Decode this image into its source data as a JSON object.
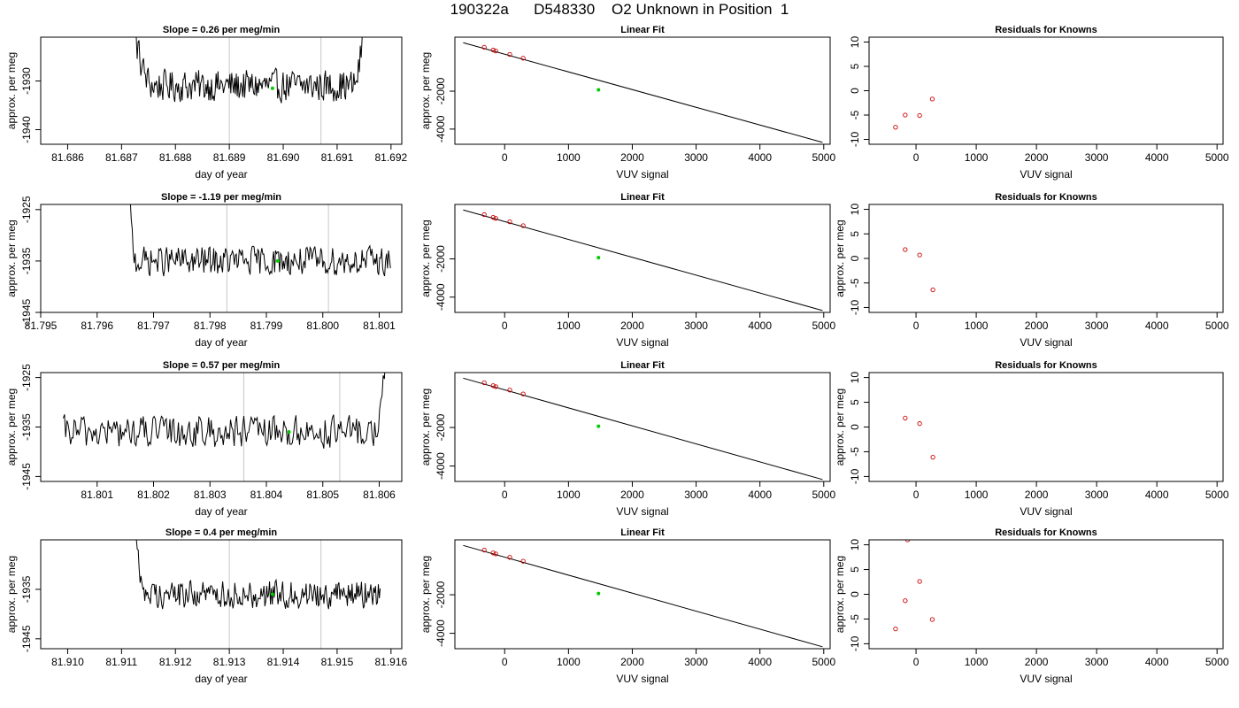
{
  "page_title": "190322a      D548330    O2 Unknown in Position  1",
  "colors": {
    "unknown_point": "#00cc00",
    "known_point": "#cc0000",
    "line": "#000000",
    "vline": "#c8c8c8"
  },
  "chart_data": [
    {
      "panel": "time-1",
      "type": "line",
      "title": "Slope =  0.26  per meg/min",
      "xlabel": "day of year",
      "ylabel": "approx. per meg",
      "xlim": [
        81.6855,
        81.6922
      ],
      "ylim": [
        -1943,
        -1921
      ],
      "xticks": [
        "81.686",
        "81.687",
        "81.688",
        "81.689",
        "81.690",
        "81.691",
        "81.692"
      ],
      "yticks": [
        "-1940",
        "-1930"
      ],
      "x_start": 81.687,
      "x_end": 81.6916,
      "level": -1931.0,
      "noise": 3.5,
      "rise_start": 81.687,
      "rise_end": 81.6876,
      "fall_start": 81.6913,
      "fall_end": 81.6916,
      "vlines": [
        81.689,
        81.6907
      ],
      "unknown_point": {
        "x": 81.6898,
        "y": -1931.5
      }
    },
    {
      "panel": "fit-1",
      "type": "scatter",
      "title": "Linear Fit",
      "xlabel": "VUV signal",
      "ylabel": "approx. per meg",
      "xlim": [
        -780,
        5100
      ],
      "ylim": [
        -4800,
        850
      ],
      "xticks": [
        "0",
        "1000",
        "2000",
        "3000",
        "4000",
        "5000"
      ],
      "yticks": [
        "-2000",
        "-4000"
      ],
      "fit_line": {
        "x": [
          -650,
          4980
        ],
        "y": [
          560,
          -4700
        ]
      },
      "knowns": {
        "x": [
          -320,
          -180,
          -140,
          80,
          290
        ],
        "y": [
          320,
          170,
          120,
          -60,
          -260
        ]
      },
      "unknown_point": {
        "x": 1470,
        "y": -1931
      }
    },
    {
      "panel": "resid-1",
      "type": "scatter",
      "title": "Residuals for Knowns",
      "xlabel": "VUV signal",
      "ylabel": "",
      "xlim": [
        -780,
        5100
      ],
      "ylim": [
        -11,
        11
      ],
      "xticks": [
        "0",
        "1000",
        "2000",
        "3000",
        "4000",
        "5000"
      ],
      "yticks": [
        "-10",
        "-5",
        "0",
        "5",
        "10"
      ],
      "points": {
        "x": [
          -340,
          -180,
          60,
          270
        ],
        "y": [
          -7.5,
          -5.0,
          -5.1,
          -1.7
        ]
      }
    },
    {
      "panel": "time-2",
      "type": "line",
      "title": "Slope =  -1.19  per meg/min",
      "xlabel": "day of year",
      "ylabel": "approx. per meg",
      "xlim": [
        81.795,
        81.8014
      ],
      "ylim": [
        -1945,
        -1924
      ],
      "xticks": [
        "81.795",
        "81.796",
        "81.797",
        "81.798",
        "81.799",
        "81.800",
        "81.801"
      ],
      "yticks": [
        "-1945",
        "-1935",
        "-1925"
      ],
      "x_start": 81.7965,
      "x_end": 81.8012,
      "level": -1935.0,
      "noise": 3.0,
      "rise_start": 81.7965,
      "rise_end": 81.7967,
      "fall_start": 81.9999,
      "fall_end": 81.9999,
      "vlines": [
        81.7983,
        81.8001
      ],
      "unknown_point": {
        "x": 81.7992,
        "y": -1935.0
      }
    },
    {
      "panel": "fit-2",
      "type": "scatter",
      "title": "Linear Fit",
      "xlabel": "VUV signal",
      "ylabel": "approx. per meg",
      "xlim": [
        -780,
        5100
      ],
      "ylim": [
        -4800,
        850
      ],
      "xticks": [
        "0",
        "1000",
        "2000",
        "3000",
        "4000",
        "5000"
      ],
      "yticks": [
        "-2000",
        "-4000"
      ],
      "fit_line": {
        "x": [
          -650,
          4980
        ],
        "y": [
          560,
          -4700
        ]
      },
      "knowns": {
        "x": [
          -320,
          -180,
          -140,
          80,
          290
        ],
        "y": [
          320,
          170,
          120,
          -60,
          -260
        ]
      },
      "unknown_point": {
        "x": 1470,
        "y": -1935
      }
    },
    {
      "panel": "resid-2",
      "type": "scatter",
      "title": "Residuals for Knowns",
      "xlabel": "VUV signal",
      "ylabel": "approx. per meg",
      "xlim": [
        -780,
        5100
      ],
      "ylim": [
        -11,
        11
      ],
      "xticks": [
        "0",
        "1000",
        "2000",
        "3000",
        "4000",
        "5000"
      ],
      "yticks": [
        "-10",
        "-5",
        "0",
        "5",
        "10"
      ],
      "points": {
        "x": [
          -180,
          60,
          280
        ],
        "y": [
          1.8,
          0.7,
          -6.4
        ]
      }
    },
    {
      "panel": "time-3",
      "type": "line",
      "title": "Slope =  0.57  per meg/min",
      "xlabel": "day of year",
      "ylabel": "approx. per meg",
      "xlim": [
        81.8,
        81.8064
      ],
      "ylim": [
        -1946,
        -1924
      ],
      "xticks": [
        "81.801",
        "81.802",
        "81.803",
        "81.804",
        "81.805",
        "81.806"
      ],
      "yticks": [
        "-1945",
        "-1935",
        "-1925"
      ],
      "x_start": 81.8004,
      "x_end": 81.8062,
      "level": -1936.0,
      "noise": 3.5,
      "rise_start": 81.7,
      "rise_end": 81.7,
      "fall_start": 81.8059,
      "fall_end": 81.8062,
      "vlines": [
        81.8036,
        81.8053
      ],
      "unknown_point": {
        "x": 81.8044,
        "y": -1936.0
      }
    },
    {
      "panel": "fit-3",
      "type": "scatter",
      "title": "Linear Fit",
      "xlabel": "VUV signal",
      "ylabel": "approx. per meg",
      "xlim": [
        -780,
        5100
      ],
      "ylim": [
        -4800,
        850
      ],
      "xticks": [
        "0",
        "1000",
        "2000",
        "3000",
        "4000",
        "5000"
      ],
      "yticks": [
        "-2000",
        "-4000"
      ],
      "fit_line": {
        "x": [
          -650,
          4980
        ],
        "y": [
          560,
          -4700
        ]
      },
      "knowns": {
        "x": [
          -320,
          -180,
          -140,
          80,
          290
        ],
        "y": [
          320,
          170,
          120,
          -60,
          -260
        ]
      },
      "unknown_point": {
        "x": 1470,
        "y": -1936
      }
    },
    {
      "panel": "resid-3",
      "type": "scatter",
      "title": "Residuals for Knowns",
      "xlabel": "VUV signal",
      "ylabel": "approx. per meg",
      "xlim": [
        -780,
        5100
      ],
      "ylim": [
        -11,
        11
      ],
      "xticks": [
        "0",
        "1000",
        "2000",
        "3000",
        "4000",
        "5000"
      ],
      "yticks": [
        "-10",
        "-5",
        "0",
        "5",
        "10"
      ],
      "points": {
        "x": [
          -180,
          60,
          280
        ],
        "y": [
          1.8,
          0.7,
          -6.1
        ]
      }
    },
    {
      "panel": "time-4",
      "type": "line",
      "title": "Slope =  0.4  per meg/min",
      "xlabel": "day of year",
      "ylabel": "approx. per meg",
      "xlim": [
        81.9095,
        81.9162
      ],
      "ylim": [
        -1947,
        -1925
      ],
      "xticks": [
        "81.910",
        "81.911",
        "81.912",
        "81.913",
        "81.914",
        "81.915",
        "81.916"
      ],
      "yticks": [
        "-1945",
        "-1935"
      ],
      "x_start": 81.9111,
      "x_end": 81.9158,
      "level": -1936.0,
      "noise": 3.0,
      "rise_start": 81.9111,
      "rise_end": 81.9115,
      "fall_start": 81.9999,
      "fall_end": 81.9999,
      "vlines": [
        81.913,
        81.9147
      ],
      "unknown_point": {
        "x": 81.9138,
        "y": -1936.0
      }
    },
    {
      "panel": "fit-4",
      "type": "scatter",
      "title": "Linear Fit",
      "xlabel": "VUV signal",
      "ylabel": "approx. per meg",
      "xlim": [
        -780,
        5100
      ],
      "ylim": [
        -4800,
        850
      ],
      "xticks": [
        "0",
        "1000",
        "2000",
        "3000",
        "4000",
        "5000"
      ],
      "yticks": [
        "-2000",
        "-4000"
      ],
      "fit_line": {
        "x": [
          -650,
          4980
        ],
        "y": [
          560,
          -4700
        ]
      },
      "knowns": {
        "x": [
          -320,
          -180,
          -140,
          80,
          290
        ],
        "y": [
          320,
          170,
          120,
          -60,
          -260
        ]
      },
      "unknown_point": {
        "x": 1470,
        "y": -1936
      }
    },
    {
      "panel": "resid-4",
      "type": "scatter",
      "title": "Residuals for Knowns",
      "xlabel": "VUV signal",
      "ylabel": "approx. per meg",
      "xlim": [
        -780,
        5100
      ],
      "ylim": [
        -11,
        11
      ],
      "xticks": [
        "0",
        "1000",
        "2000",
        "3000",
        "4000",
        "5000"
      ],
      "yticks": [
        "-10",
        "-5",
        "0",
        "5",
        "10"
      ],
      "points": {
        "x": [
          -340,
          -180,
          -140,
          60,
          270
        ],
        "y": [
          -7.0,
          -1.3,
          11.0,
          2.6,
          -5.1
        ]
      }
    }
  ]
}
